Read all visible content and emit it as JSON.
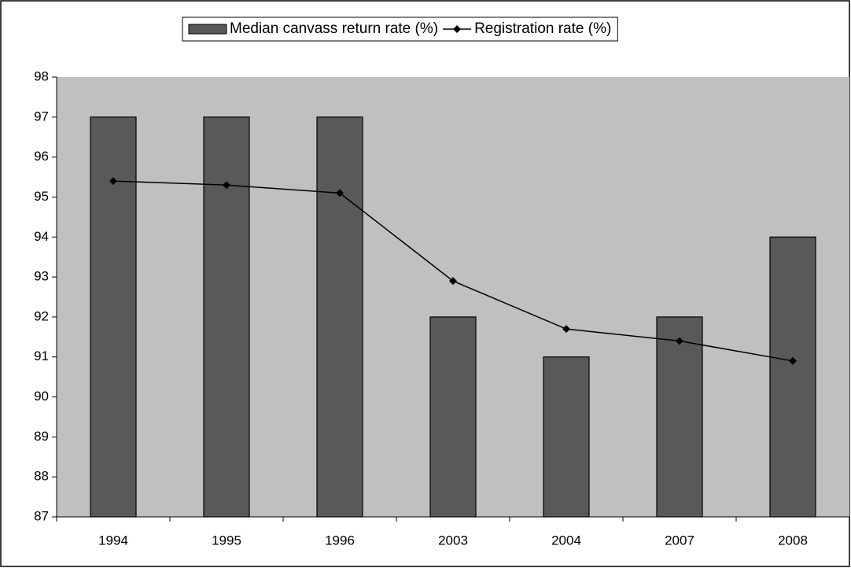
{
  "chart_data": {
    "type": "bar",
    "categories": [
      "1994",
      "1995",
      "1996",
      "2003",
      "2004",
      "2007",
      "2008"
    ],
    "series": [
      {
        "name": "Median canvass return rate (%)",
        "type": "bar",
        "color": "#595959",
        "values": [
          97,
          97,
          97,
          92,
          91,
          92,
          94
        ]
      },
      {
        "name": "Registration rate (%)",
        "type": "line",
        "color": "#000000",
        "values": [
          95.4,
          95.3,
          95.1,
          92.9,
          91.7,
          91.4,
          90.9
        ]
      }
    ],
    "ylim": [
      87,
      98
    ],
    "yticks": [
      87,
      88,
      89,
      90,
      91,
      92,
      93,
      94,
      95,
      96,
      97,
      98
    ],
    "grid": false,
    "plot_background": "#c0c0c0",
    "legend": "top"
  }
}
